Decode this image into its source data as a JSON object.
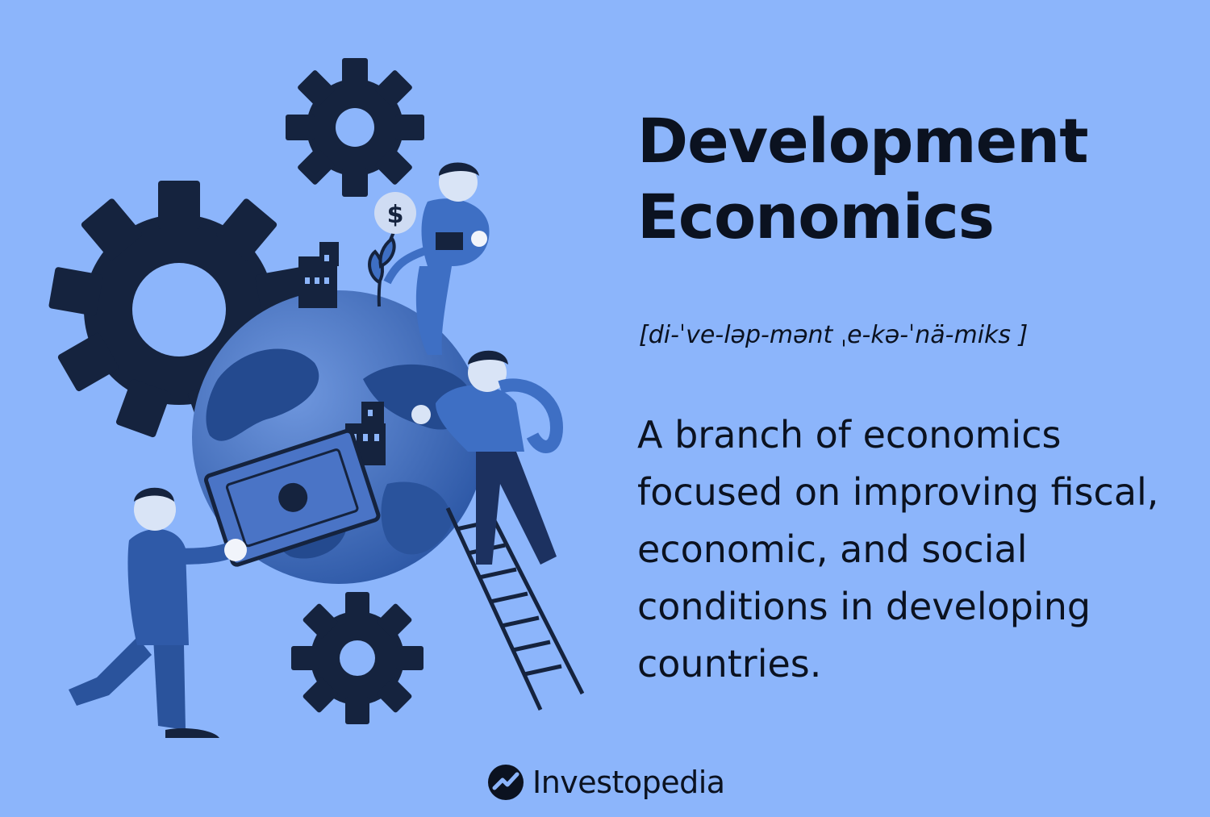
{
  "header": {
    "title_line1": "Development",
    "title_line2": "Economics"
  },
  "pronunciation": "[di-ˈve-ləp-mənt ˌe-kə-ˈnä-miks ]",
  "definition": "A branch of economics focused on improving fiscal, economic, and social conditions in developing countries.",
  "brand": {
    "name": "Investopedia",
    "logo_icon": "investopedia-logo-icon"
  },
  "illustration": {
    "icons": [
      "gear-icon",
      "globe-icon",
      "person-icon",
      "ladder-icon",
      "banknote-icon",
      "building-icon",
      "dollar-coin-icon",
      "sprout-icon"
    ],
    "coin_glyph": "$"
  },
  "colors": {
    "background": "#8cb5fb",
    "dark_navy": "#15233e",
    "mid_blue": "#3e6fc4",
    "globe_blue": "#4a74c6",
    "text": "#0b1220"
  }
}
